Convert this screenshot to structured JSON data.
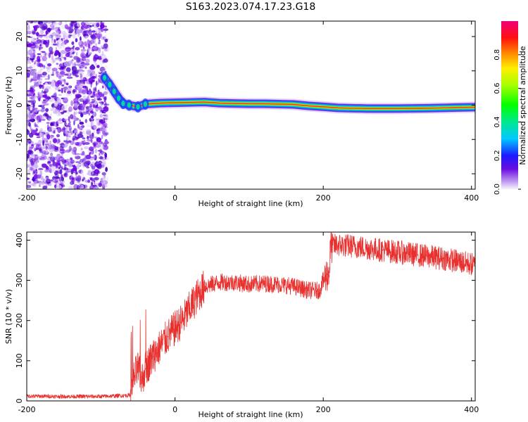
{
  "figure": {
    "title": "S163.2023.074.17.23.G18"
  },
  "chart_data": [
    {
      "type": "heatmap",
      "xlabel": "Height of straight line (km)",
      "ylabel": "Frequency (Hz)",
      "xlim": [
        -200,
        405
      ],
      "ylim": [
        -24.5,
        24.5
      ],
      "xticks": [
        -200,
        0,
        200,
        400
      ],
      "yticks": [
        -20,
        -10,
        0,
        10,
        20
      ],
      "colorbar": {
        "label": "Normalized spectral amplitude",
        "range": [
          0,
          1
        ],
        "ticks": [
          0.0,
          0.2,
          0.4,
          0.6,
          0.8
        ]
      },
      "noise_region": {
        "x_start": -200,
        "x_end": -95,
        "freq_range": [
          -24.5,
          24.5
        ]
      },
      "ridge": [
        {
          "x": -95,
          "f": 8
        },
        {
          "x": -88,
          "f": 6
        },
        {
          "x": -82,
          "f": 4
        },
        {
          "x": -76,
          "f": 2
        },
        {
          "x": -70,
          "f": 0.5
        },
        {
          "x": -62,
          "f": 0
        },
        {
          "x": -50,
          "f": -0.5
        },
        {
          "x": -40,
          "f": 0.3
        },
        {
          "x": -20,
          "f": 0.6
        },
        {
          "x": 0,
          "f": 0.7
        },
        {
          "x": 20,
          "f": 0.8
        },
        {
          "x": 40,
          "f": 0.9
        },
        {
          "x": 60,
          "f": 0.6
        },
        {
          "x": 80,
          "f": 0.5
        },
        {
          "x": 100,
          "f": 0.4
        },
        {
          "x": 120,
          "f": 0.4
        },
        {
          "x": 140,
          "f": 0.3
        },
        {
          "x": 160,
          "f": 0.2
        },
        {
          "x": 180,
          "f": -0.2
        },
        {
          "x": 200,
          "f": -0.5
        },
        {
          "x": 220,
          "f": -0.8
        },
        {
          "x": 260,
          "f": -1.0
        },
        {
          "x": 300,
          "f": -1.0
        },
        {
          "x": 340,
          "f": -0.9
        },
        {
          "x": 380,
          "f": -0.7
        },
        {
          "x": 405,
          "f": -0.6
        }
      ]
    },
    {
      "type": "line",
      "xlabel": "Height of straight line (km)",
      "ylabel": "SNR (10 * v/v)",
      "xlim": [
        -200,
        405
      ],
      "ylim": [
        0,
        420
      ],
      "xticks": [
        -200,
        0,
        200,
        400
      ],
      "yticks": [
        0,
        100,
        200,
        300,
        400
      ],
      "series": [
        {
          "color": "#e8302e",
          "x": [
            -200,
            -150,
            -100,
            -60,
            -55,
            -50,
            -45,
            -40,
            -30,
            -20,
            -10,
            0,
            10,
            20,
            30,
            40,
            60,
            80,
            100,
            120,
            140,
            160,
            180,
            195,
            200,
            205,
            208,
            210,
            220,
            240,
            260,
            280,
            300,
            320,
            340,
            360,
            380,
            400,
            405
          ],
          "y": [
            12,
            11,
            11,
            14,
            60,
            80,
            50,
            80,
            110,
            135,
            160,
            180,
            200,
            230,
            260,
            285,
            295,
            295,
            290,
            292,
            290,
            285,
            275,
            275,
            300,
            315,
            320,
            385,
            388,
            385,
            380,
            375,
            370,
            365,
            360,
            355,
            348,
            340,
            335
          ]
        }
      ]
    }
  ]
}
